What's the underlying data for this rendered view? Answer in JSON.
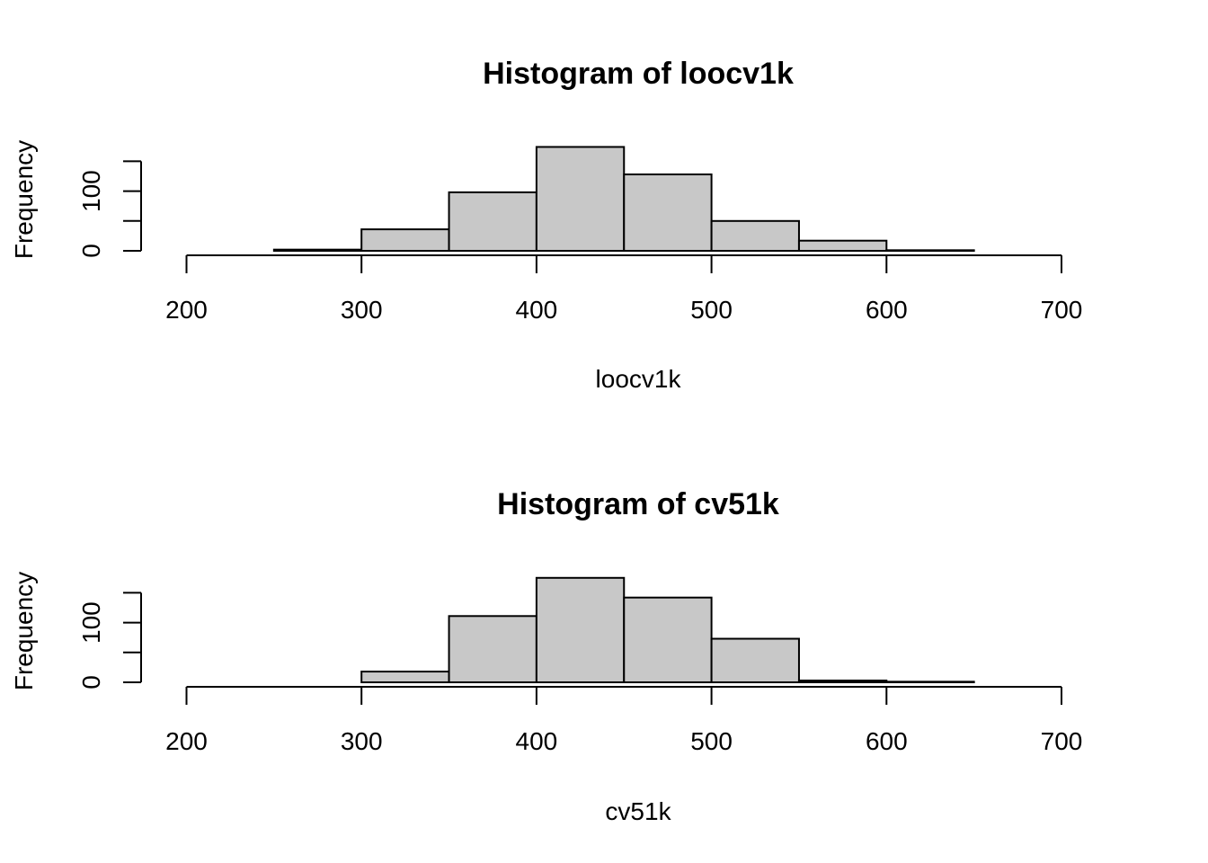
{
  "chart_data": [
    {
      "type": "bar",
      "title": "Histogram of loocv1k",
      "xlabel": "loocv1k",
      "ylabel": "Frequency",
      "bin_edges": [
        250,
        300,
        350,
        400,
        450,
        500,
        550,
        600,
        650
      ],
      "values": [
        2,
        36,
        98,
        174,
        128,
        50,
        17,
        1
      ],
      "xlim": [
        200,
        700
      ],
      "x_ticks": [
        200,
        300,
        400,
        500,
        600,
        700
      ],
      "y_ticks": [
        0,
        50,
        100,
        150
      ],
      "y_tick_labels": [
        "0",
        "100"
      ],
      "bar_color": "#c8c8c8"
    },
    {
      "type": "bar",
      "title": "Histogram of cv51k",
      "xlabel": "cv51k",
      "ylabel": "Frequency",
      "bin_edges": [
        300,
        350,
        400,
        450,
        500,
        550,
        600,
        650
      ],
      "values": [
        18,
        111,
        175,
        142,
        73,
        3,
        1
      ],
      "xlim": [
        200,
        700
      ],
      "x_ticks": [
        200,
        300,
        400,
        500,
        600,
        700
      ],
      "y_ticks": [
        0,
        50,
        100,
        150
      ],
      "y_tick_labels": [
        "0",
        "100"
      ],
      "bar_color": "#c8c8c8"
    }
  ]
}
